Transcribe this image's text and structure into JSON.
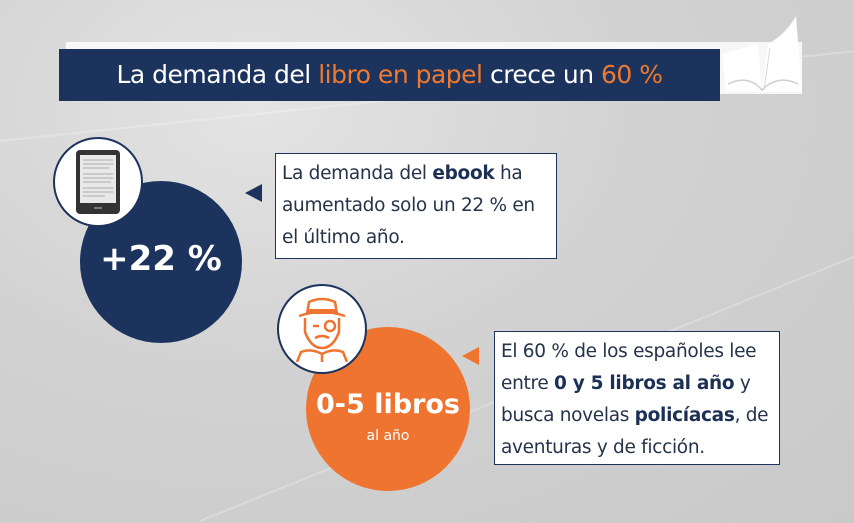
{
  "title": {
    "part1": "La demanda del ",
    "part2": "libro en papel",
    "part3": " crece un ",
    "part4": "60 %"
  },
  "colors": {
    "navy": "#1c335d",
    "orange": "#ee7430",
    "background": "#d2d2d2"
  },
  "icons": [
    "open-book-icon",
    "ebook-reader-icon",
    "detective-reader-icon"
  ],
  "ebook": {
    "stat": "+22 %",
    "text": {
      "s1": "La demanda del ",
      "s2": "ebook",
      "s3": " ha aumentado solo un 22 % en el último año."
    }
  },
  "readers": {
    "stat": "0-5 libros",
    "stat_sub": "al año",
    "text": {
      "s1": "El 60 % de los españoles lee entre ",
      "s2": "0 y 5 libros al año",
      "s3": " y busca novelas ",
      "s4": "policíacas",
      "s5": ", de aventuras y de ficción."
    }
  }
}
